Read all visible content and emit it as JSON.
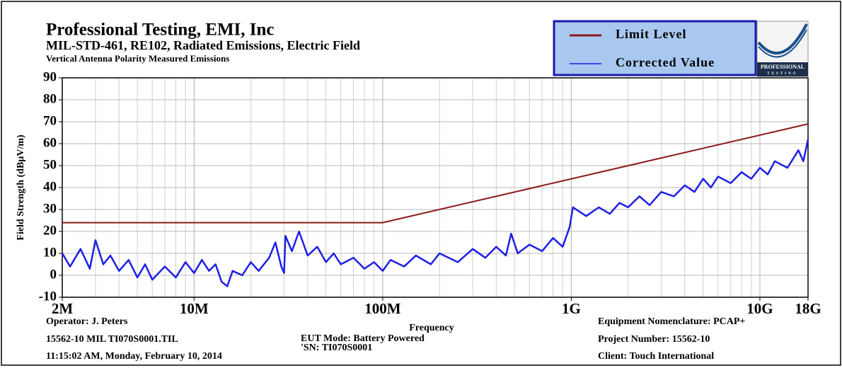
{
  "chart_data": {
    "type": "line",
    "title": "Professional Testing, EMI, Inc",
    "subtitle": "MIL-STD-461, RE102, Radiated Emissions, Electric Field",
    "caption": "Vertical Antenna Polarity Measured Emissions",
    "xlabel": "Frequency",
    "ylabel": "Field Strength (dBµV/m)",
    "xscale": "log",
    "xlim": [
      2000000,
      18000000000
    ],
    "xticks": [
      {
        "value": 2000000,
        "label": "2M"
      },
      {
        "value": 10000000,
        "label": "10M"
      },
      {
        "value": 100000000,
        "label": "100M"
      },
      {
        "value": 1000000000,
        "label": "1G"
      },
      {
        "value": 10000000000,
        "label": "10G"
      },
      {
        "value": 18000000000,
        "label": "18G"
      }
    ],
    "ylim": [
      -10,
      90
    ],
    "yticks": [
      -10,
      0,
      10,
      20,
      30,
      40,
      50,
      60,
      70,
      80,
      90
    ],
    "grid": true,
    "legend": "top-right",
    "series": [
      {
        "name": "Limit Level",
        "color": "#8b1a1a",
        "x": [
          2000000,
          100000000,
          18000000000
        ],
        "values": [
          24,
          24,
          69
        ]
      },
      {
        "name": "Corrected Value",
        "color": "#1f1fe6",
        "x": [
          2000000,
          2200000,
          2500000,
          2800000,
          3000000,
          3300000,
          3600000,
          4000000,
          4500000,
          5000000,
          5500000,
          6000000,
          7000000,
          8000000,
          9000000,
          10000000,
          11000000,
          12000000,
          13000000,
          14000000,
          15000000,
          16000000,
          18000000,
          20000000,
          22000000,
          25000000,
          27000000,
          29000000,
          30000000,
          30500000,
          33000000,
          36000000,
          40000000,
          45000000,
          50000000,
          55000000,
          60000000,
          70000000,
          80000000,
          90000000,
          100000000,
          110000000,
          130000000,
          150000000,
          180000000,
          200000000,
          250000000,
          300000000,
          350000000,
          400000000,
          450000000,
          480000000,
          520000000,
          600000000,
          700000000,
          800000000,
          900000000,
          980000000,
          1020000000,
          1200000000,
          1400000000,
          1600000000,
          1800000000,
          2000000000,
          2300000000,
          2600000000,
          3000000000,
          3500000000,
          4000000000,
          4500000000,
          5000000000,
          5500000000,
          6000000000,
          7000000000,
          8000000000,
          9000000000,
          10000000000,
          11000000000,
          12000000000,
          14000000000,
          16000000000,
          17000000000,
          18000000000
        ],
        "values": [
          10,
          4,
          12,
          3,
          16,
          5,
          9,
          2,
          7,
          -1,
          5,
          -2,
          4,
          -1,
          6,
          1,
          7,
          2,
          5,
          -3,
          -5,
          2,
          0,
          6,
          2,
          8,
          15,
          4,
          1,
          18,
          11,
          20,
          9,
          13,
          6,
          10,
          5,
          8,
          3,
          6,
          2,
          7,
          4,
          9,
          5,
          10,
          6,
          12,
          8,
          13,
          9,
          19,
          10,
          14,
          11,
          17,
          13,
          22,
          31,
          27,
          31,
          28,
          33,
          31,
          36,
          32,
          38,
          36,
          41,
          38,
          44,
          40,
          45,
          42,
          47,
          44,
          49,
          46,
          52,
          49,
          57,
          52,
          62
        ]
      }
    ]
  },
  "footer": {
    "operator": "Operator: J. Peters",
    "file": "15562-10 MIL TI070S0001.TIL",
    "timestamp": "11:15:02 AM, Monday, February 10, 2014",
    "eut_mode": "EUT Mode: Battery Powered",
    "serial": "'SN: TI070S0001",
    "equipment": "Equipment Nomenclature: PCAP+",
    "project": "Project Number: 15562-10",
    "client": "Client: Touch International"
  },
  "logo": {
    "line1": "PROFESSIONAL",
    "line2": "TESTING"
  }
}
